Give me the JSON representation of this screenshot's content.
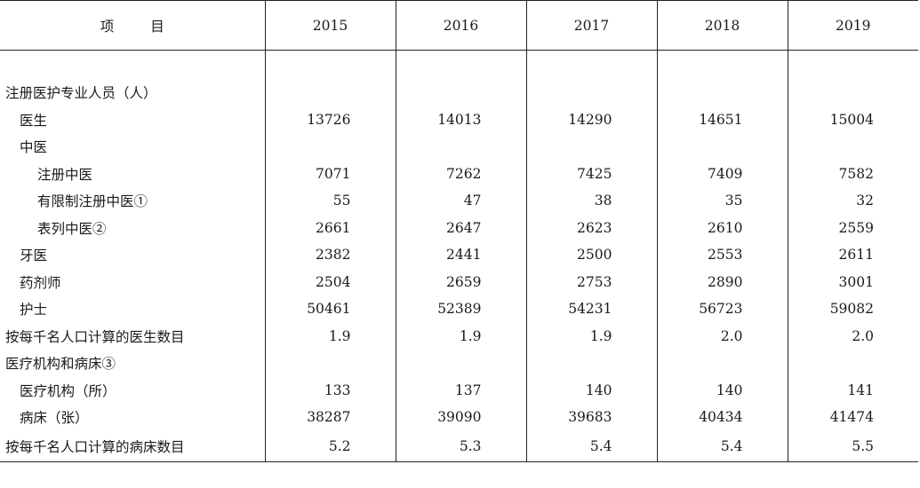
{
  "header": {
    "item": "项 目",
    "years": [
      "2015",
      "2016",
      "2017",
      "2018",
      "2019"
    ]
  },
  "rows": [
    {
      "label": "注册医护专业人员（人）",
      "level": 0,
      "values": [
        "",
        "",
        "",
        "",
        ""
      ]
    },
    {
      "label": "医生",
      "level": 1,
      "values": [
        "13726",
        "14013",
        "14290",
        "14651",
        "15004"
      ]
    },
    {
      "label": "中医",
      "level": 1,
      "values": [
        "",
        "",
        "",
        "",
        ""
      ]
    },
    {
      "label": "注册中医",
      "level": 2,
      "values": [
        "7071",
        "7262",
        "7425",
        "7409",
        "7582"
      ]
    },
    {
      "label": "有限制注册中医①",
      "level": 2,
      "values": [
        "55",
        "47",
        "38",
        "35",
        "32"
      ]
    },
    {
      "label": "表列中医②",
      "level": 2,
      "values": [
        "2661",
        "2647",
        "2623",
        "2610",
        "2559"
      ]
    },
    {
      "label": "牙医",
      "level": 1,
      "values": [
        "2382",
        "2441",
        "2500",
        "2553",
        "2611"
      ]
    },
    {
      "label": "药剂师",
      "level": 1,
      "values": [
        "2504",
        "2659",
        "2753",
        "2890",
        "3001"
      ]
    },
    {
      "label": "护士",
      "level": 1,
      "values": [
        "50461",
        "52389",
        "54231",
        "56723",
        "59082"
      ]
    },
    {
      "label": "按每千名人口计算的医生数目",
      "level": 0,
      "values": [
        "1.9",
        "1.9",
        "1.9",
        "2.0",
        "2.0"
      ]
    },
    {
      "label": "医疗机构和病床③",
      "level": 0,
      "values": [
        "",
        "",
        "",
        "",
        ""
      ]
    },
    {
      "label": "医疗机构（所）",
      "level": 1,
      "values": [
        "133",
        "137",
        "140",
        "140",
        "141"
      ]
    },
    {
      "label": "病床（张）",
      "level": 1,
      "values": [
        "38287",
        "39090",
        "39683",
        "40434",
        "41474"
      ]
    },
    {
      "label": "按每千名人口计算的病床数目",
      "level": 0,
      "values": [
        "5.2",
        "5.3",
        "5.4",
        "5.4",
        "5.5"
      ]
    }
  ]
}
